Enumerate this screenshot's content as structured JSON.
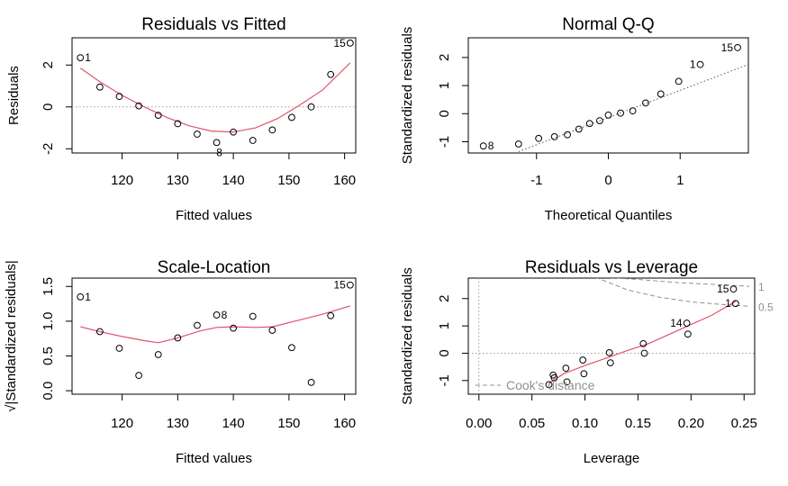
{
  "chart_data": [
    {
      "type": "scatter",
      "title": "Residuals vs Fitted",
      "xlabel": "Fitted values",
      "ylabel": "Residuals",
      "xlim": [
        111,
        162
      ],
      "ylim": [
        -2.2,
        3.3
      ],
      "xticks": [
        120,
        130,
        140,
        150,
        160
      ],
      "yticks": [
        -2,
        0,
        2
      ],
      "ref_line": 0,
      "points": [
        {
          "x": 112.5,
          "y": 2.35
        },
        {
          "x": 116.0,
          "y": 0.95
        },
        {
          "x": 119.5,
          "y": 0.5
        },
        {
          "x": 123.0,
          "y": 0.05
        },
        {
          "x": 126.5,
          "y": -0.4
        },
        {
          "x": 130.0,
          "y": -0.8
        },
        {
          "x": 133.5,
          "y": -1.3
        },
        {
          "x": 137.0,
          "y": -1.7
        },
        {
          "x": 140.0,
          "y": -1.2
        },
        {
          "x": 143.5,
          "y": -1.6
        },
        {
          "x": 147.0,
          "y": -1.1
        },
        {
          "x": 150.5,
          "y": -0.5
        },
        {
          "x": 154.0,
          "y": 0.0
        },
        {
          "x": 157.5,
          "y": 1.55
        },
        {
          "x": 161.0,
          "y": 3.05
        }
      ],
      "smoother": [
        [
          112.5,
          1.85
        ],
        [
          116,
          1.2
        ],
        [
          120,
          0.55
        ],
        [
          124,
          0.0
        ],
        [
          128,
          -0.5
        ],
        [
          132,
          -0.9
        ],
        [
          136,
          -1.15
        ],
        [
          140,
          -1.2
        ],
        [
          144,
          -1.0
        ],
        [
          148,
          -0.55
        ],
        [
          152,
          0.1
        ],
        [
          156,
          0.8
        ],
        [
          161,
          2.1
        ]
      ],
      "labels": [
        {
          "text": "1",
          "x": 112.5,
          "y": 2.35,
          "side": "right"
        },
        {
          "text": "8",
          "x": 137.0,
          "y": -1.7,
          "side": "below"
        },
        {
          "text": "15",
          "x": 161.0,
          "y": 3.05,
          "side": "left"
        }
      ]
    },
    {
      "type": "scatter",
      "title": "Normal Q-Q",
      "xlabel": "Theoretical Quantiles",
      "ylabel": "Standardized residuals",
      "xlim": [
        -1.95,
        1.95
      ],
      "ylim": [
        -1.4,
        2.7
      ],
      "xticks": [
        -1,
        0,
        1
      ],
      "yticks": [
        -1,
        0,
        1,
        2
      ],
      "ref_line_points": [
        [
          -1.25,
          -1.35
        ],
        [
          1.95,
          1.75
        ]
      ],
      "points": [
        {
          "x": -1.74,
          "y": -1.15
        },
        {
          "x": -1.25,
          "y": -1.08
        },
        {
          "x": -0.97,
          "y": -0.88
        },
        {
          "x": -0.75,
          "y": -0.82
        },
        {
          "x": -0.57,
          "y": -0.75
        },
        {
          "x": -0.41,
          "y": -0.55
        },
        {
          "x": -0.26,
          "y": -0.35
        },
        {
          "x": -0.12,
          "y": -0.25
        },
        {
          "x": 0.0,
          "y": -0.05
        },
        {
          "x": 0.17,
          "y": 0.02
        },
        {
          "x": 0.34,
          "y": 0.1
        },
        {
          "x": 0.52,
          "y": 0.38
        },
        {
          "x": 0.73,
          "y": 0.7
        },
        {
          "x": 0.98,
          "y": 1.15
        },
        {
          "x": 1.28,
          "y": 1.75
        },
        {
          "x": 1.8,
          "y": 2.35
        }
      ],
      "labels": [
        {
          "text": "8",
          "x": -1.74,
          "y": -1.15,
          "side": "right"
        },
        {
          "text": "1",
          "x": 1.28,
          "y": 1.75,
          "side": "left"
        },
        {
          "text": "15",
          "x": 1.8,
          "y": 2.35,
          "side": "left"
        }
      ]
    },
    {
      "type": "scatter",
      "title": "Scale-Location",
      "xlabel": "Fitted values",
      "ylabel": "√|Standardized residuals|",
      "xlim": [
        111,
        162
      ],
      "ylim": [
        -0.05,
        1.62
      ],
      "xticks": [
        120,
        130,
        140,
        150,
        160
      ],
      "yticks": [
        0.0,
        0.5,
        1.0,
        1.5
      ],
      "yticklabels": [
        "0.0",
        "0.5",
        "1.0",
        "1.5"
      ],
      "points": [
        {
          "x": 112.5,
          "y": 1.35
        },
        {
          "x": 116.0,
          "y": 0.85
        },
        {
          "x": 119.5,
          "y": 0.61
        },
        {
          "x": 123.0,
          "y": 0.22
        },
        {
          "x": 126.5,
          "y": 0.52
        },
        {
          "x": 130.0,
          "y": 0.76
        },
        {
          "x": 133.5,
          "y": 0.94
        },
        {
          "x": 137.0,
          "y": 1.09
        },
        {
          "x": 140.0,
          "y": 0.9
        },
        {
          "x": 143.5,
          "y": 1.07
        },
        {
          "x": 147.0,
          "y": 0.87
        },
        {
          "x": 150.5,
          "y": 0.62
        },
        {
          "x": 154.0,
          "y": 0.12
        },
        {
          "x": 157.5,
          "y": 1.08
        },
        {
          "x": 161.0,
          "y": 1.52
        }
      ],
      "smoother": [
        [
          112.5,
          0.92
        ],
        [
          116,
          0.85
        ],
        [
          120,
          0.78
        ],
        [
          124,
          0.72
        ],
        [
          126.5,
          0.69
        ],
        [
          130,
          0.76
        ],
        [
          134,
          0.86
        ],
        [
          137,
          0.91
        ],
        [
          140,
          0.92
        ],
        [
          144,
          0.91
        ],
        [
          147,
          0.92
        ],
        [
          151,
          1.0
        ],
        [
          156,
          1.1
        ],
        [
          161,
          1.22
        ]
      ],
      "labels": [
        {
          "text": "1",
          "x": 112.5,
          "y": 1.35,
          "side": "right"
        },
        {
          "text": "8",
          "x": 137.0,
          "y": 1.09,
          "side": "right"
        },
        {
          "text": "15",
          "x": 161.0,
          "y": 1.52,
          "side": "left"
        }
      ]
    },
    {
      "type": "scatter",
      "title": "Residuals vs Leverage",
      "xlabel": "Leverage",
      "ylabel": "Standardized residuals",
      "xlim": [
        -0.01,
        0.26
      ],
      "ylim": [
        -1.5,
        2.75
      ],
      "xticks": [
        0.0,
        0.05,
        0.1,
        0.15,
        0.2,
        0.25
      ],
      "xticklabels": [
        "0.00",
        "0.05",
        "0.10",
        "0.15",
        "0.20",
        "0.25"
      ],
      "yticks": [
        -1,
        0,
        1,
        2
      ],
      "ref_line": 0,
      "vline": 0,
      "points": [
        {
          "x": 0.066,
          "y": -1.15
        },
        {
          "x": 0.07,
          "y": -0.8
        },
        {
          "x": 0.071,
          "y": -0.9
        },
        {
          "x": 0.082,
          "y": -0.55
        },
        {
          "x": 0.083,
          "y": -1.05
        },
        {
          "x": 0.098,
          "y": -0.25
        },
        {
          "x": 0.099,
          "y": -0.75
        },
        {
          "x": 0.123,
          "y": 0.02
        },
        {
          "x": 0.124,
          "y": -0.35
        },
        {
          "x": 0.155,
          "y": 0.35
        },
        {
          "x": 0.156,
          "y": 0.0
        },
        {
          "x": 0.196,
          "y": 1.1
        },
        {
          "x": 0.197,
          "y": 0.7
        },
        {
          "x": 0.24,
          "y": 2.35
        },
        {
          "x": 0.242,
          "y": 1.82
        }
      ],
      "smoother": [
        [
          0.066,
          -1.1
        ],
        [
          0.08,
          -0.75
        ],
        [
          0.1,
          -0.45
        ],
        [
          0.12,
          -0.18
        ],
        [
          0.14,
          0.1
        ],
        [
          0.16,
          0.35
        ],
        [
          0.18,
          0.7
        ],
        [
          0.2,
          1.05
        ],
        [
          0.22,
          1.4
        ],
        [
          0.242,
          1.9
        ]
      ],
      "cooks_contours": [
        {
          "level": "1",
          "points": [
            [
              0.11,
              2.8
            ],
            [
              0.15,
              2.7
            ],
            [
              0.19,
              2.58
            ],
            [
              0.23,
              2.5
            ],
            [
              0.255,
              2.45
            ]
          ]
        },
        {
          "level": "0.5",
          "points": [
            [
              0.11,
              2.78
            ],
            [
              0.14,
              2.32
            ],
            [
              0.17,
              2.05
            ],
            [
              0.2,
              1.88
            ],
            [
              0.23,
              1.78
            ],
            [
              0.255,
              1.72
            ]
          ]
        }
      ],
      "legend": {
        "text": "Cook's distance",
        "position": "bottom-left"
      },
      "labels": [
        {
          "text": "14",
          "x": 0.196,
          "y": 1.1,
          "side": "left"
        },
        {
          "text": "1",
          "x": 0.242,
          "y": 1.82,
          "side": "left"
        },
        {
          "text": "15",
          "x": 0.24,
          "y": 2.35,
          "side": "left"
        }
      ]
    }
  ],
  "colors": {
    "points": "#000000",
    "smoother": "#df536b",
    "reference": "#a0a0a0",
    "cooks": "#909090"
  }
}
